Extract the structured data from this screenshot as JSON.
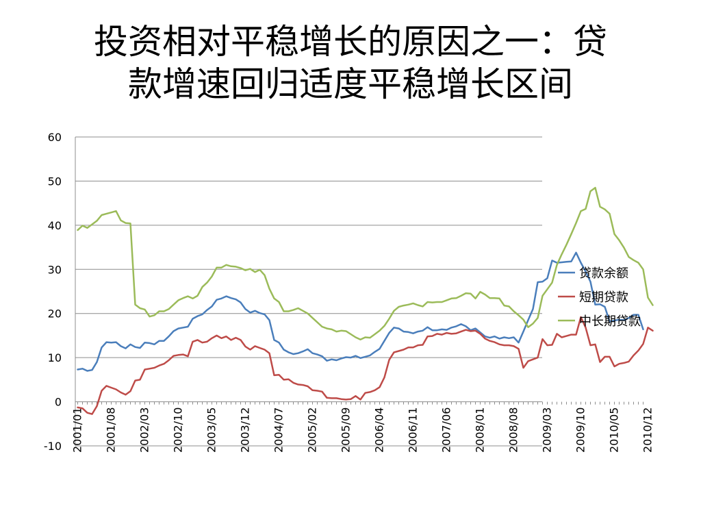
{
  "slide": {
    "title_lines": [
      "投资相对平稳增长的原因之一：贷",
      "款增速回归适度平稳增长区间"
    ]
  },
  "chart_data": {
    "type": "line",
    "title": "",
    "xlabel": "",
    "ylabel": "",
    "ylim": [
      -10,
      60
    ],
    "yticks": [
      -10,
      0,
      10,
      20,
      30,
      40,
      50,
      60
    ],
    "grid": true,
    "legend_position": "right",
    "x_start": "2001/01",
    "x_ticks": [
      "2001/01",
      "2001/08",
      "2002/03",
      "2002/10",
      "2003/05",
      "2003/12",
      "2004/07",
      "2005/02",
      "2005/09",
      "2006/04",
      "2006/11",
      "2007/06",
      "2008/01",
      "2008/08",
      "2009/03",
      "2009/10",
      "2010/05",
      "2010/12"
    ],
    "series": [
      {
        "name": "贷款余额",
        "color": "#4a7ebb",
        "values": [
          7.3,
          7.5,
          7.0,
          7.2,
          9.0,
          12.3,
          13.5,
          13.4,
          13.5,
          12.6,
          12.1,
          13.0,
          12.4,
          12.2,
          13.4,
          13.3,
          13.0,
          13.8,
          13.8,
          14.8,
          16.0,
          16.6,
          16.8,
          17.0,
          18.8,
          19.4,
          19.8,
          20.8,
          21.6,
          23.1,
          23.4,
          23.9,
          23.5,
          23.2,
          22.5,
          21.0,
          20.2,
          20.6,
          20.1,
          19.8,
          18.5,
          14.0,
          13.4,
          11.8,
          11.2,
          10.8,
          11.0,
          11.4,
          11.9,
          11.0,
          10.7,
          10.3,
          9.3,
          9.6,
          9.4,
          9.8,
          10.1,
          10.0,
          10.4,
          9.9,
          10.2,
          10.5,
          11.3,
          12.0,
          13.8,
          15.6,
          16.8,
          16.6,
          15.9,
          15.8,
          15.5,
          15.9,
          16.1,
          16.9,
          16.2,
          16.2,
          16.4,
          16.3,
          16.8,
          17.1,
          17.6,
          17.1,
          16.2,
          16.6,
          15.7,
          14.8,
          14.5,
          14.8,
          14.3,
          14.6,
          14.4,
          14.6,
          13.4,
          15.9,
          18.5,
          21.0,
          27.1,
          27.2,
          28.0,
          32.0,
          31.5,
          31.6,
          31.7,
          31.8,
          33.8,
          31.5,
          29.5,
          27.2,
          22.0,
          22.1,
          21.5,
          18.2,
          18.4,
          18.6,
          18.5,
          19.0,
          19.7,
          19.7,
          16.4
        ]
      },
      {
        "name": "短期贷款",
        "color": "#be4b48",
        "values": [
          -1.3,
          -1.5,
          -2.5,
          -2.8,
          -1.0,
          2.5,
          3.6,
          3.2,
          2.8,
          2.1,
          1.6,
          2.4,
          4.8,
          5.0,
          7.3,
          7.5,
          7.7,
          8.2,
          8.6,
          9.4,
          10.4,
          10.6,
          10.7,
          10.3,
          13.6,
          14.0,
          13.4,
          13.6,
          14.4,
          15.0,
          14.4,
          14.8,
          14.0,
          14.5,
          14.0,
          12.5,
          11.8,
          12.6,
          12.2,
          11.8,
          11.0,
          6.0,
          6.1,
          5.0,
          5.1,
          4.3,
          3.9,
          3.8,
          3.5,
          2.6,
          2.5,
          2.3,
          0.9,
          0.8,
          0.8,
          0.6,
          0.5,
          0.6,
          1.3,
          0.5,
          2.0,
          2.2,
          2.6,
          3.3,
          5.5,
          9.5,
          11.2,
          11.5,
          11.8,
          12.3,
          12.3,
          12.8,
          12.9,
          14.8,
          14.9,
          15.4,
          15.2,
          15.6,
          15.4,
          15.5,
          15.9,
          16.3,
          16.0,
          16.1,
          15.4,
          14.3,
          13.8,
          13.5,
          13.0,
          12.8,
          12.8,
          12.6,
          12.0,
          7.7,
          9.2,
          9.6,
          10.0,
          14.2,
          12.8,
          12.9,
          15.4,
          14.6,
          14.9,
          15.2,
          15.2,
          19.2,
          16.8,
          12.8,
          13.0,
          9.0,
          10.2,
          10.2,
          8.0,
          8.6,
          8.8,
          9.1,
          10.5,
          11.6,
          13.1,
          16.8,
          16.1
        ]
      },
      {
        "name": "中长期贷款",
        "color": "#9bbb59",
        "values": [
          38.9,
          39.9,
          39.4,
          40.2,
          41.0,
          42.3,
          42.6,
          42.9,
          43.2,
          41.1,
          40.5,
          40.4,
          22.0,
          21.2,
          20.9,
          19.3,
          19.6,
          20.5,
          20.5,
          21.0,
          22.0,
          23.0,
          23.5,
          23.9,
          23.4,
          24.0,
          26.0,
          27.0,
          28.4,
          30.4,
          30.4,
          31.0,
          30.7,
          30.6,
          30.3,
          29.8,
          30.1,
          29.4,
          29.9,
          28.7,
          25.6,
          23.4,
          22.6,
          20.5,
          20.5,
          20.8,
          21.2,
          20.6,
          20.0,
          19.0,
          18.0,
          17.0,
          16.6,
          16.4,
          15.9,
          16.1,
          16.0,
          15.3,
          14.6,
          14.1,
          14.6,
          14.5,
          15.3,
          16.1,
          17.2,
          18.8,
          20.6,
          21.5,
          21.8,
          22.0,
          22.3,
          21.9,
          21.6,
          22.6,
          22.5,
          22.6,
          22.6,
          23.0,
          23.4,
          23.5,
          24.0,
          24.6,
          24.5,
          23.4,
          24.9,
          24.3,
          23.5,
          23.5,
          23.4,
          21.8,
          21.6,
          20.5,
          19.6,
          18.6,
          16.9,
          17.7,
          19.0,
          24.0,
          25.5,
          27.0,
          31.0,
          33.4,
          35.6,
          38.0,
          40.5,
          43.2,
          43.7,
          47.7,
          48.5,
          44.2,
          43.6,
          42.6,
          38.0,
          36.6,
          34.9,
          32.8,
          32.1,
          31.5,
          30.0,
          23.6,
          21.9
        ]
      }
    ]
  }
}
